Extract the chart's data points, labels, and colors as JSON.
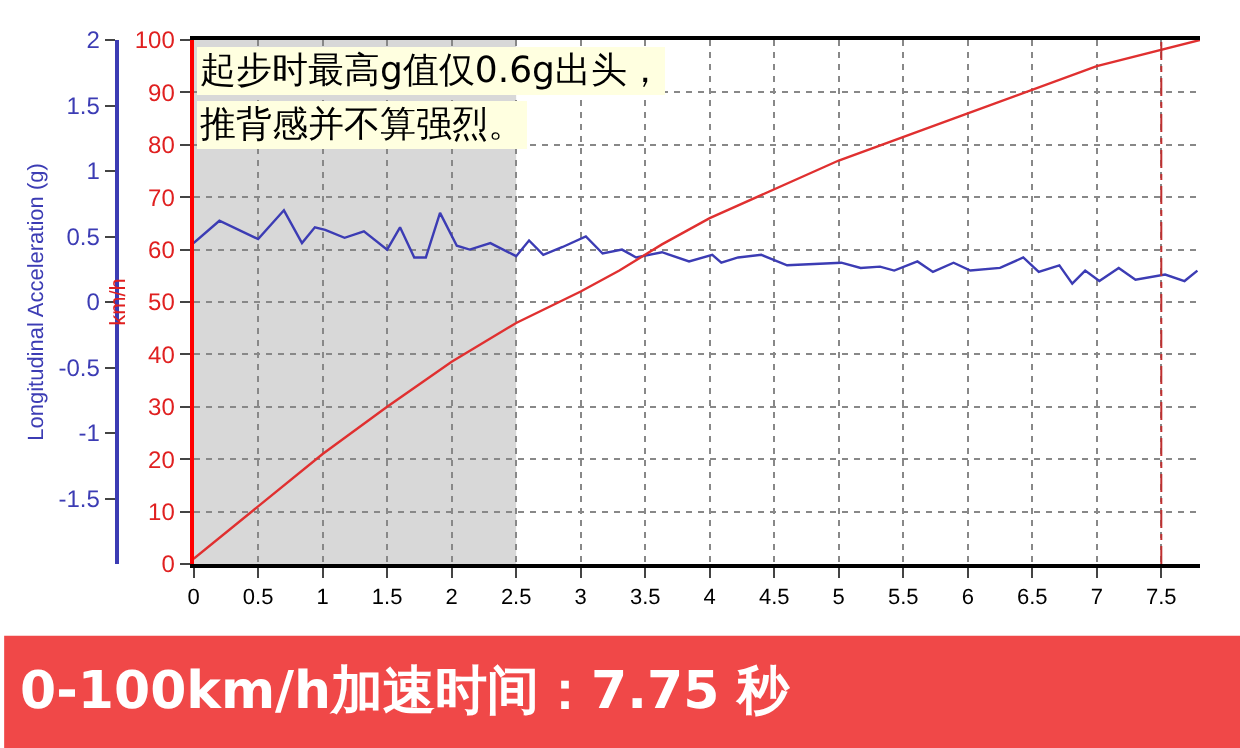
{
  "chart_data": {
    "type": "line",
    "ylabel": "Longitudinal Acceleration (g)",
    "y2label": "km/h",
    "annotations": [
      "起步时最高g值仅0.6g出头，",
      "推背感并不算强烈。",
      "0-100km/h加速时间：7.75 秒"
    ],
    "series": [
      {
        "color": "#3c3cb4",
        "axis": "y",
        "x": [
          0,
          0.2,
          0.5,
          0.7,
          0.84,
          0.94,
          1.02,
          1.17,
          1.32,
          1.5,
          1.6,
          1.71,
          1.8,
          1.91,
          2.04,
          2.14,
          2.3,
          2.5,
          2.6,
          2.71,
          2.86,
          3.04,
          3.17,
          3.32,
          3.43,
          3.63,
          3.84,
          4.02,
          4.09,
          4.22,
          4.4,
          4.6,
          4.81,
          5.02,
          5.17,
          5.32,
          5.43,
          5.61,
          5.73,
          5.89,
          6.02,
          6.25,
          6.43,
          6.55,
          6.71,
          6.81,
          6.91,
          7.02,
          7.17,
          7.3,
          7.53,
          7.68,
          7.78
        ],
        "values": [
          0.45,
          0.62,
          0.48,
          0.7,
          0.45,
          0.57,
          0.55,
          0.49,
          0.54,
          0.4,
          0.57,
          0.34,
          0.34,
          0.68,
          0.43,
          0.4,
          0.45,
          0.35,
          0.47,
          0.36,
          0.42,
          0.5,
          0.37,
          0.4,
          0.34,
          0.38,
          0.31,
          0.36,
          0.3,
          0.34,
          0.36,
          0.28,
          0.29,
          0.3,
          0.26,
          0.27,
          0.24,
          0.31,
          0.23,
          0.3,
          0.24,
          0.26,
          0.34,
          0.23,
          0.28,
          0.14,
          0.24,
          0.16,
          0.26,
          0.17,
          0.21,
          0.16,
          0.24
        ]
      },
      {
        "color": "#e03030",
        "axis": "y2",
        "x": [
          0,
          0.5,
          1,
          1.5,
          2,
          2.5,
          3,
          3.3,
          3.63,
          4,
          5,
          6,
          7,
          7.8
        ],
        "values": [
          1,
          11,
          21,
          30,
          38.6,
          46,
          52,
          56,
          61,
          66,
          77,
          86,
          95,
          100
        ]
      }
    ],
    "xlim": [
      0,
      7.8
    ],
    "xticks": [
      0,
      0.5,
      1,
      1.5,
      2,
      2.5,
      3,
      3.5,
      4,
      4.5,
      5,
      5.5,
      6,
      6.5,
      7,
      7.5
    ],
    "ylim": [
      -2,
      2
    ],
    "yticks": [
      -1.5,
      -1,
      -0.5,
      0,
      0.5,
      1,
      1.5,
      2
    ],
    "y2lim": [
      0,
      100
    ],
    "y2ticks": [
      0,
      10,
      20,
      30,
      40,
      50,
      60,
      70,
      80,
      90,
      100
    ],
    "ref_lines": [
      {
        "axis": "x",
        "value": 7.5,
        "color": "#c03030",
        "line_style": "dashed"
      }
    ],
    "bands": [
      {
        "axis": "x",
        "from": 0,
        "to": 2.5,
        "color": "#d8d8d8"
      }
    ],
    "grid": true,
    "marker": "none",
    "line_style": "solid"
  }
}
